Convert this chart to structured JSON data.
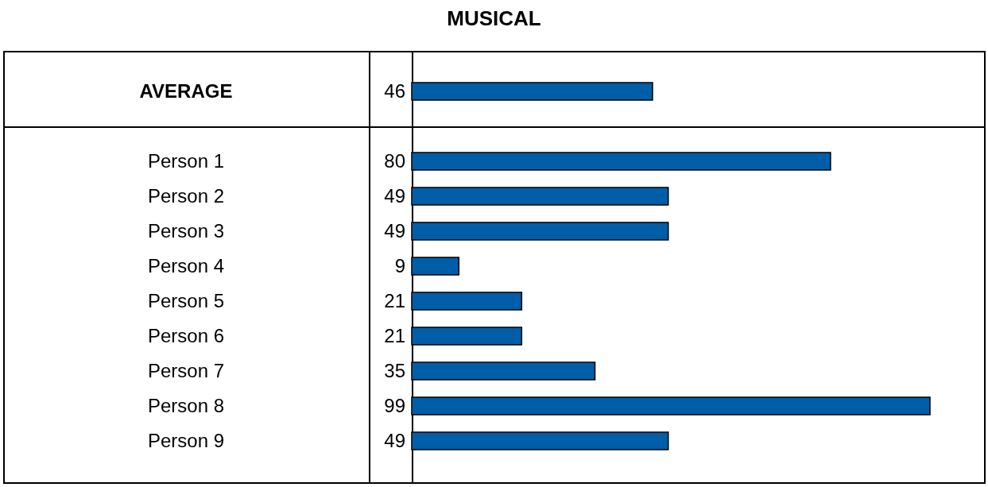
{
  "chart_data": {
    "type": "bar",
    "orientation": "horizontal",
    "title": "MUSICAL",
    "categories": [
      "AVERAGE",
      null,
      "Person 1",
      "Person 2",
      "Person 3",
      "Person 4",
      "Person 5",
      "Person 6",
      "Person 7",
      "Person 8",
      "Person 9"
    ],
    "values": [
      46,
      null,
      80,
      49,
      49,
      9,
      21,
      21,
      35,
      99,
      49
    ],
    "color": "#005ea8",
    "data_labels": true
  }
}
